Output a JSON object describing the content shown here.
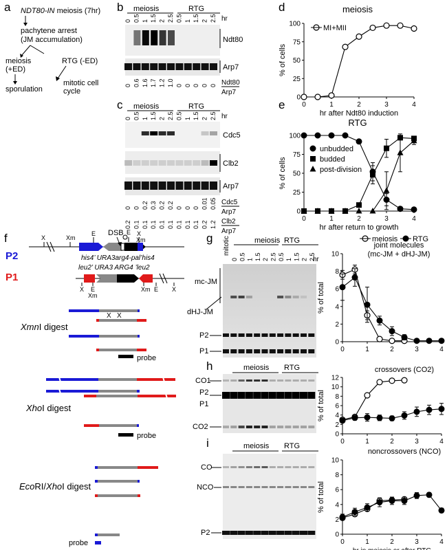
{
  "panel_letters": [
    "a",
    "b",
    "c",
    "d",
    "e",
    "f",
    "g",
    "h",
    "i"
  ],
  "panel_a": {
    "title_ital": "NDT80-IN",
    "title_rest": " meiosis (7hr)",
    "step2": "pachytene arrest",
    "step2b": "(JM accumulation)",
    "branch_left": "meiosis",
    "branch_left_b": "(+ED)",
    "branch_right": "RTG (-ED)",
    "end_left": "sporulation",
    "end_right": "mitotic cell",
    "end_right_b": "cycle"
  },
  "panel_b": {
    "group_labels": [
      "meiosis",
      "RTG"
    ],
    "lane_times": [
      "0",
      "0.5",
      "1",
      "1.5",
      "2",
      "2.5",
      "0.5",
      "1",
      "1.5",
      "2",
      "2.5"
    ],
    "hr": "hr",
    "bands": [
      "Ndt80",
      "Arp7"
    ],
    "ratio_values": [
      "0",
      "0.6",
      "1.6",
      "1.7",
      "1.2",
      "1.0",
      "0",
      "0",
      "0",
      "0",
      "0"
    ],
    "ratio_num": "Ndt80",
    "ratio_den": "Arp7"
  },
  "panel_c": {
    "group_labels": [
      "meiosis",
      "RTG"
    ],
    "lane_times": [
      "0",
      "0.5",
      "1",
      "1.5",
      "2",
      "2.5",
      "0.5",
      "1",
      "1.5",
      "2",
      "2.5"
    ],
    "hr": "hr",
    "bands": [
      "Cdc5",
      "Clb2",
      "Arp7"
    ],
    "cdc5_values": [
      "0",
      "0",
      "0.2",
      "0.3",
      "0.2",
      "0.2",
      "0",
      "0",
      "0",
      "0.01",
      "0.05"
    ],
    "cdc5_num": "Cdc5",
    "cdc5_den": "Arp7",
    "clb2_values": [
      "0.2",
      "0.1",
      "0.1",
      "0.1",
      "0.1",
      "0.1",
      "0.1",
      "0.1",
      "0.1",
      "0.2",
      "1.2"
    ],
    "clb2_num": "Clb2",
    "clb2_den": "Arp7"
  },
  "panel_f": {
    "p2_label": "P2",
    "p1_label": "P1",
    "p2_sites": [
      "X",
      "Xm",
      "E",
      "X",
      "Xm"
    ],
    "dsb": "DSB",
    "p2_genes": "his4’ URA3arg4-pal’his4",
    "p1_genes": "leu2’ URA3   ARG4 ’leu2",
    "p1_sites": [
      "X",
      "E",
      "Xm",
      "Xm",
      "E",
      "X"
    ],
    "digest1": "XmnI digest",
    "digest1_ital": "Xmn",
    "digest1_rest": "I digest",
    "digest2_ital": "Xho",
    "digest2_rest": "I digest",
    "digest3_ital1": "Eco",
    "digest3_mid": "RI/",
    "digest3_ital2": "Xho",
    "digest3_rest": "I digest",
    "probe": "probe"
  },
  "panel_g": {
    "mitotic": "mitotic",
    "group_labels": [
      "meiosis",
      "RTG"
    ],
    "lane_times": [
      "0",
      "0.5",
      "1",
      "1.5",
      "2",
      "2.5",
      "0.5",
      "1",
      "1.5",
      "2",
      "2.5"
    ],
    "hr": "hr",
    "bands": [
      "mc-JM",
      "dHJ-JM",
      "P2",
      "P1"
    ]
  },
  "panel_h": {
    "group_labels": [
      "meiosis",
      "RTG"
    ],
    "bands": [
      "CO1",
      "P2",
      "P1",
      "CO2"
    ]
  },
  "panel_i": {
    "group_labels": [
      "meiosis",
      "RTG"
    ],
    "bands": [
      "CO",
      "NCO",
      "P2"
    ]
  },
  "chart_data": [
    {
      "panel": "d",
      "type": "line",
      "title": "meiosis",
      "xlabel": "hr after Ndt80 induction",
      "ylabel": "% of cells",
      "xlim": [
        0,
        4
      ],
      "ylim": [
        0,
        100
      ],
      "xticks": [
        "0",
        "1",
        "2",
        "3",
        "4"
      ],
      "yticks": [
        "0",
        "25",
        "50",
        "75",
        "100"
      ],
      "legend": "top-left",
      "series": [
        {
          "name": "MI+MII",
          "marker": "open-circle",
          "x": [
            0,
            0.5,
            1,
            1.5,
            2,
            2.5,
            3,
            3.5,
            4
          ],
          "y": [
            0,
            0,
            2,
            68,
            82,
            94,
            97,
            97,
            93
          ]
        }
      ]
    },
    {
      "panel": "e",
      "type": "line",
      "title": "RTG",
      "xlabel": "hr after return to growth",
      "ylabel": "% of cells",
      "xlim": [
        0,
        4
      ],
      "ylim": [
        0,
        100
      ],
      "xticks": [
        "0",
        "1",
        "2",
        "3",
        "4"
      ],
      "yticks": [
        "0",
        "25",
        "50",
        "75",
        "100"
      ],
      "legend": "left",
      "series": [
        {
          "name": "unbudded",
          "marker": "filled-circle",
          "x": [
            0,
            0.5,
            1,
            1.5,
            2,
            2.5,
            3,
            3.5,
            4
          ],
          "y": [
            100,
            100,
            100,
            100,
            92,
            52,
            15,
            3,
            2
          ],
          "err": [
            0,
            0,
            0,
            0,
            2,
            12,
            8,
            2,
            1
          ]
        },
        {
          "name": "budded",
          "marker": "filled-square",
          "x": [
            0,
            0.5,
            1,
            1.5,
            2,
            2.5,
            3,
            3.5,
            4
          ],
          "y": [
            0,
            0,
            0,
            0,
            8,
            48,
            83,
            97,
            96
          ],
          "err": [
            0,
            0,
            0,
            0,
            2,
            12,
            12,
            3,
            3
          ]
        },
        {
          "name": "post-division",
          "marker": "filled-triangle",
          "x": [
            0,
            0.5,
            1,
            1.5,
            2,
            2.5,
            3,
            3.5,
            4
          ],
          "y": [
            0,
            0,
            0,
            0,
            0,
            0,
            27,
            77,
            93
          ],
          "err": [
            0,
            0,
            0,
            0,
            0,
            0,
            25,
            25,
            5
          ]
        }
      ]
    },
    {
      "panel": "g",
      "type": "line",
      "title": "joint molecules",
      "subtitle": "(mc-JM + dHJ-JM)",
      "xlabel": "",
      "ylabel": "% of total",
      "xlim": [
        0,
        4
      ],
      "ylim": [
        0,
        10
      ],
      "xticks": [
        "0",
        "1",
        "2",
        "3",
        "4"
      ],
      "yticks": [
        "0",
        "2",
        "4",
        "6",
        "8",
        "10"
      ],
      "legend": "top-right",
      "series": [
        {
          "name": "meiosis",
          "marker": "open-circle",
          "x": [
            0,
            0.5,
            1,
            1.5,
            2,
            2.5
          ],
          "y": [
            7.6,
            8.2,
            3.0,
            0.3,
            0.1,
            0.1
          ],
          "err": [
            0.5,
            0.5,
            0.5,
            0.2,
            0.1,
            0.1
          ]
        },
        {
          "name": "RTG",
          "marker": "filled-circle",
          "x": [
            0,
            0.5,
            1,
            1.5,
            2,
            2.5,
            3,
            3.5,
            4
          ],
          "y": [
            6.2,
            7.3,
            4.2,
            2.4,
            1.2,
            0.5,
            0.1,
            0.1,
            0.1
          ],
          "err": [
            1.5,
            1.0,
            2.0,
            0.5,
            0.5,
            0.3,
            0.1,
            0.1,
            0.1
          ]
        }
      ]
    },
    {
      "panel": "h",
      "type": "line",
      "title": "crossovers (CO2)",
      "xlabel": "",
      "ylabel": "% of total",
      "xlim": [
        0,
        4
      ],
      "ylim": [
        0,
        12
      ],
      "xticks": [
        "0",
        "1",
        "2",
        "3",
        "4"
      ],
      "yticks": [
        "0",
        "2",
        "4",
        "6",
        "8",
        "10",
        "12"
      ],
      "series": [
        {
          "name": "meiosis",
          "marker": "open-circle",
          "x": [
            0,
            0.5,
            1,
            1.5,
            2,
            2.5
          ],
          "y": [
            3.0,
            3.6,
            8.2,
            11.0,
            11.3,
            11.4
          ]
        },
        {
          "name": "RTG",
          "marker": "filled-circle",
          "x": [
            0,
            0.5,
            1,
            1.5,
            2,
            2.5,
            3,
            3.5,
            4
          ],
          "y": [
            2.8,
            3.4,
            3.5,
            3.4,
            3.3,
            3.9,
            4.7,
            5.1,
            5.3
          ],
          "err": [
            0.2,
            0.5,
            0.8,
            0.6,
            0.5,
            0.8,
            1.0,
            1.0,
            1.2
          ]
        }
      ]
    },
    {
      "panel": "i",
      "type": "line",
      "title": "noncrossovers (NCO)",
      "xlabel": "hr in meiosis or after RTG",
      "ylabel": "% of total",
      "xlim": [
        0,
        4
      ],
      "ylim": [
        0,
        10
      ],
      "xticks": [
        "0",
        "1",
        "2",
        "3",
        "4"
      ],
      "yticks": [
        "0",
        "2",
        "4",
        "6",
        "8",
        "10"
      ],
      "series": [
        {
          "name": "meiosis",
          "marker": "open-circle",
          "x": [
            0,
            0.5,
            1,
            1.5,
            2,
            2.5
          ],
          "y": [
            2.2,
            2.7,
            3.4,
            4.5,
            4.6,
            4.7
          ]
        },
        {
          "name": "RTG",
          "marker": "filled-circle",
          "x": [
            0,
            0.5,
            1,
            1.5,
            2,
            2.5,
            3,
            3.5,
            4
          ],
          "y": [
            2.3,
            3.0,
            3.6,
            4.3,
            4.5,
            4.5,
            5.2,
            5.3,
            3.2
          ],
          "err": [
            0.4,
            0.5,
            0.5,
            0.6,
            0.5,
            0.5,
            0.4,
            0.3,
            0.3
          ]
        }
      ]
    }
  ]
}
